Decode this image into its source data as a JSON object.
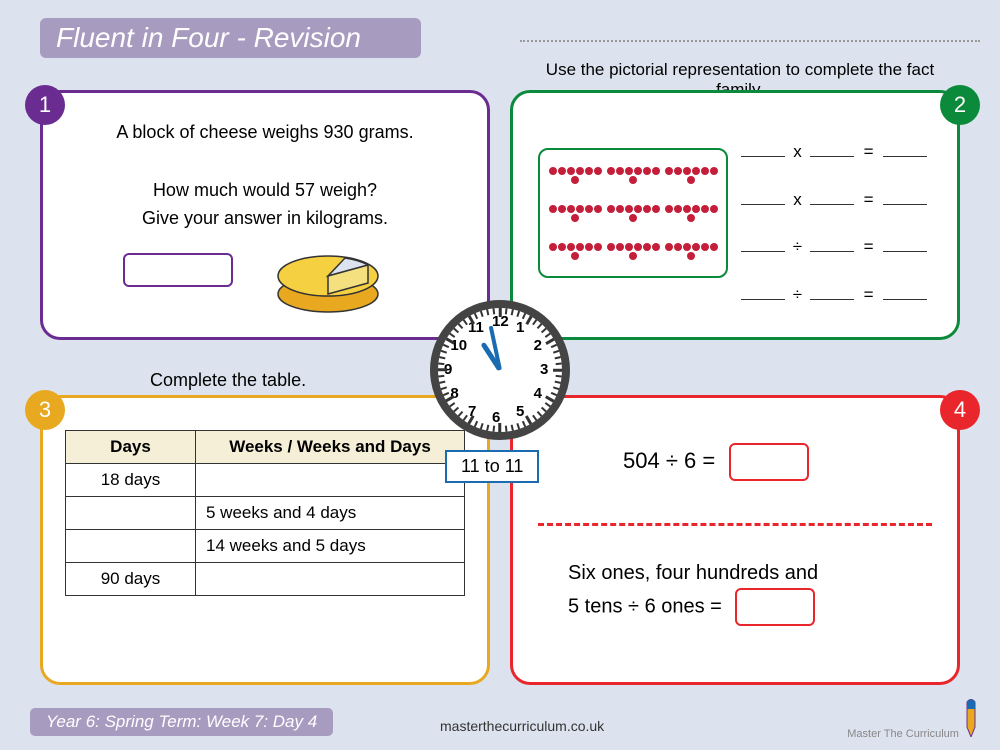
{
  "title": "Fluent in Four - Revision",
  "footer": "Year 6: Spring Term: Week 7: Day  4",
  "website": "masterthecurriculum.co.uk",
  "logo_text": "Master The Curriculum",
  "badges": [
    "1",
    "2",
    "3",
    "4"
  ],
  "colors": {
    "bg": "#dce3ee",
    "title_bg": "#a89bc0",
    "p1": "#6b2c91",
    "p2": "#0a8a3a",
    "p3": "#e8a820",
    "p4": "#e8262c"
  },
  "q1": {
    "line1": "A block of cheese weighs 930 grams.",
    "line2": "How much would 57 weigh?",
    "line3": "Give your answer in kilograms."
  },
  "q2": {
    "instruction": "Use the pictorial representation to complete the fact family.",
    "array": {
      "rows": 3,
      "cols": 3,
      "dots_per_cluster": 7
    },
    "ops": [
      "x",
      "x",
      "÷",
      "÷"
    ]
  },
  "q3": {
    "instruction": "Complete the table.",
    "headers": [
      "Days",
      "Weeks / Weeks and Days"
    ],
    "rows": [
      [
        "18 days",
        ""
      ],
      [
        "",
        "5 weeks and 4 days"
      ],
      [
        "",
        "14 weeks and 5 days"
      ],
      [
        "90 days",
        ""
      ]
    ]
  },
  "clock": {
    "label": "11 to 11"
  },
  "q4": {
    "top": "504 ÷ 6 =",
    "bot1": "Six ones, four hundreds and",
    "bot2": "5 tens ÷ 6 ones ="
  }
}
